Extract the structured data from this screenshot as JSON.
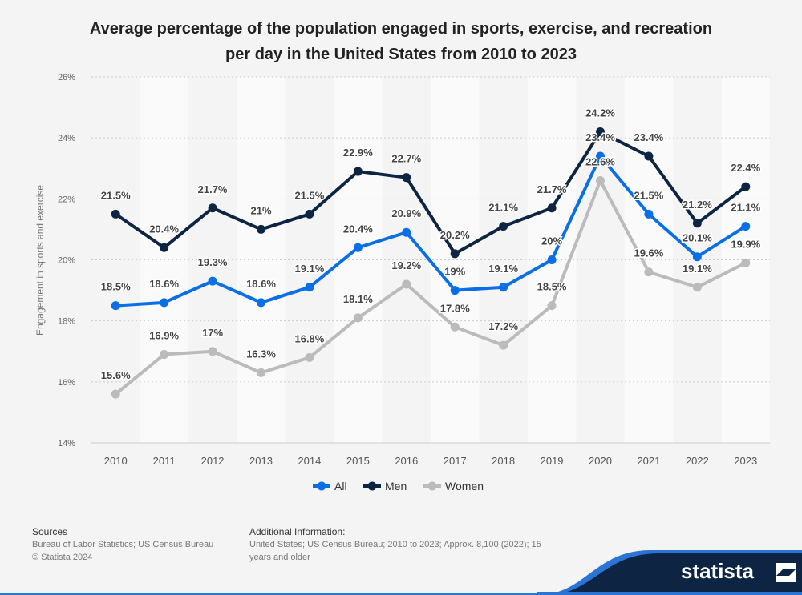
{
  "chart_data": {
    "type": "line",
    "title": "Average percentage of the population engaged in sports, exercise, and recreation per day in the United States from 2010 to 2023",
    "xlabel": "",
    "ylabel": "Engagement in sports and exercise",
    "categories": [
      "2010",
      "2011",
      "2012",
      "2013",
      "2014",
      "2015",
      "2016",
      "2017",
      "2018",
      "2019",
      "2020",
      "2021",
      "2022",
      "2023"
    ],
    "ylim": [
      14,
      26
    ],
    "yticks": [
      "14%",
      "16%",
      "18%",
      "20%",
      "22%",
      "24%",
      "26%"
    ],
    "grid": true,
    "legend_position": "bottom",
    "series": [
      {
        "name": "All",
        "color": "#0a6ee6",
        "values": [
          18.5,
          18.6,
          19.3,
          18.6,
          19.1,
          20.4,
          20.9,
          19.0,
          19.1,
          20.0,
          23.4,
          21.5,
          20.1,
          21.1
        ],
        "labels": [
          "18.5%",
          "18.6%",
          "19.3%",
          "18.6%",
          "19.1%",
          "20.4%",
          "20.9%",
          "19%",
          "19.1%",
          "20%",
          "23.4%",
          "21.5%",
          "20.1%",
          "21.1%"
        ]
      },
      {
        "name": "Men",
        "color": "#0d2543",
        "values": [
          21.5,
          20.4,
          21.7,
          21.0,
          21.5,
          22.9,
          22.7,
          20.2,
          21.1,
          21.7,
          24.2,
          23.4,
          21.2,
          22.4
        ],
        "labels": [
          "21.5%",
          "20.4%",
          "21.7%",
          "21%",
          "21.5%",
          "22.9%",
          "22.7%",
          "20.2%",
          "21.1%",
          "21.7%",
          "24.2%",
          "23.4%",
          "21.2%",
          "22.4%"
        ]
      },
      {
        "name": "Women",
        "color": "#bbbbbb",
        "values": [
          15.6,
          16.9,
          17.0,
          16.3,
          16.8,
          18.1,
          19.2,
          17.8,
          17.2,
          18.5,
          22.6,
          19.6,
          19.1,
          19.9
        ],
        "labels": [
          "15.6%",
          "16.9%",
          "17%",
          "16.3%",
          "16.8%",
          "18.1%",
          "19.2%",
          "17.8%",
          "17.2%",
          "18.5%",
          "22.6%",
          "19.6%",
          "19.1%",
          "19.9%"
        ]
      }
    ]
  },
  "footer": {
    "sources_heading": "Sources",
    "sources": "Bureau of Labor Statistics; US Census Bureau",
    "copyright": "© Statista 2024",
    "additional_heading": "Additional Information:",
    "additional_line1": "United States; US Census Bureau; 2010 to 2023; Approx. 8,100 (2022); 15",
    "additional_line2": "years and older",
    "logo": "statista"
  }
}
